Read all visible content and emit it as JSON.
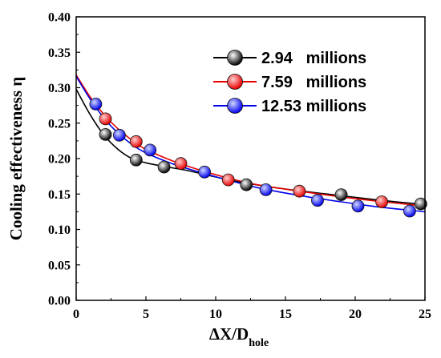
{
  "chart_data": {
    "type": "line",
    "xlabel": "ΔX/D",
    "xlabel_sub": "hole",
    "ylabel": "Cooling effectiveness η",
    "xlim": [
      0,
      25
    ],
    "ylim": [
      0.0,
      0.4
    ],
    "xticks": [
      "0",
      "5",
      "10",
      "15",
      "20",
      "25"
    ],
    "yticks": [
      "0.00",
      "0.05",
      "0.10",
      "0.15",
      "0.20",
      "0.25",
      "0.30",
      "0.35",
      "0.40"
    ],
    "legend_position": "top-right",
    "grid": false,
    "series": [
      {
        "name": "2.94   millions",
        "color": "#000000",
        "marker_highlight": "#ffffff",
        "line": [
          [
            0,
            0.298
          ],
          [
            1,
            0.262
          ],
          [
            2,
            0.233
          ],
          [
            3,
            0.213
          ],
          [
            4,
            0.2
          ],
          [
            5,
            0.194
          ],
          [
            6,
            0.19
          ],
          [
            8,
            0.183
          ],
          [
            10,
            0.174
          ],
          [
            12,
            0.166
          ],
          [
            15,
            0.157
          ],
          [
            18,
            0.15
          ],
          [
            21,
            0.143
          ],
          [
            24,
            0.137
          ],
          [
            25,
            0.136
          ]
        ],
        "markers": [
          [
            2.1,
            0.234
          ],
          [
            4.3,
            0.198
          ],
          [
            6.3,
            0.188
          ],
          [
            12.2,
            0.163
          ],
          [
            19.0,
            0.149
          ],
          [
            24.7,
            0.136
          ]
        ]
      },
      {
        "name": "7.59   millions",
        "color": "#e80000",
        "marker_highlight": "#ffd0d0",
        "line": [
          [
            0,
            0.318
          ],
          [
            1,
            0.287
          ],
          [
            2,
            0.262
          ],
          [
            3,
            0.242
          ],
          [
            4,
            0.226
          ],
          [
            5,
            0.213
          ],
          [
            7,
            0.196
          ],
          [
            9,
            0.183
          ],
          [
            11,
            0.172
          ],
          [
            13,
            0.163
          ],
          [
            16,
            0.154
          ],
          [
            19,
            0.146
          ],
          [
            22,
            0.139
          ],
          [
            25,
            0.133
          ]
        ],
        "markers": [
          [
            2.1,
            0.256
          ],
          [
            4.3,
            0.224
          ],
          [
            7.5,
            0.193
          ],
          [
            10.9,
            0.17
          ],
          [
            16.0,
            0.154
          ],
          [
            21.9,
            0.139
          ]
        ]
      },
      {
        "name": "12.53 millions",
        "color": "#0000ee",
        "marker_highlight": "#d0d8ff",
        "line": [
          [
            0,
            0.316
          ],
          [
            1,
            0.284
          ],
          [
            2,
            0.257
          ],
          [
            3,
            0.236
          ],
          [
            4,
            0.22
          ],
          [
            5,
            0.208
          ],
          [
            7,
            0.192
          ],
          [
            9,
            0.18
          ],
          [
            11,
            0.169
          ],
          [
            13,
            0.159
          ],
          [
            16,
            0.148
          ],
          [
            19,
            0.139
          ],
          [
            22,
            0.131
          ],
          [
            25,
            0.125
          ]
        ],
        "markers": [
          [
            1.4,
            0.277
          ],
          [
            3.1,
            0.233
          ],
          [
            5.3,
            0.212
          ],
          [
            9.2,
            0.181
          ],
          [
            13.6,
            0.156
          ],
          [
            17.3,
            0.141
          ],
          [
            20.2,
            0.133
          ],
          [
            23.9,
            0.126
          ]
        ]
      }
    ]
  }
}
